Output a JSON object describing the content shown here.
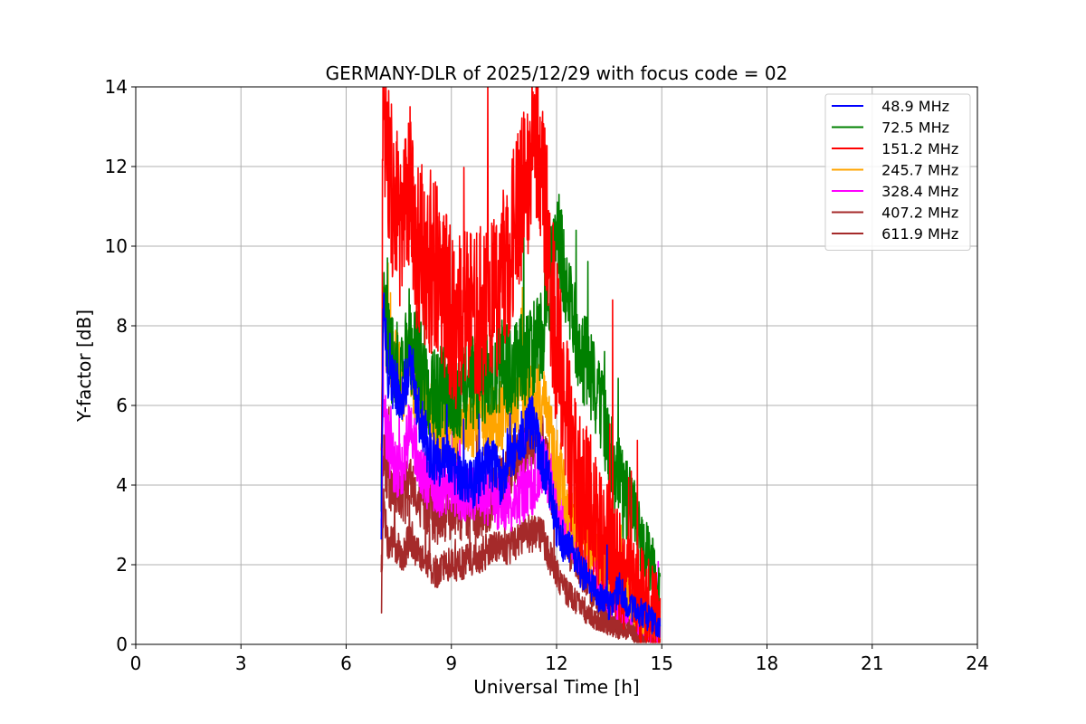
{
  "chart_data": {
    "type": "line",
    "title": "GERMANY-DLR of 2025/12/29 with focus code = 02",
    "xlabel": "Universal Time [h]",
    "ylabel": "Y-factor [dB]",
    "xlim": [
      0,
      24
    ],
    "ylim": [
      0,
      14
    ],
    "xticks": [
      "0",
      "3",
      "6",
      "9",
      "12",
      "15",
      "18",
      "21",
      "24"
    ],
    "yticks": [
      "0",
      "2",
      "4",
      "6",
      "8",
      "10",
      "12",
      "14"
    ],
    "grid": true,
    "legend_position": "top-right",
    "series": [
      {
        "name": " 48.9 MHz",
        "color": "#0000ff",
        "noise": 0.7,
        "x": [
          7.0,
          7.05,
          7.2,
          7.4,
          7.6,
          7.8,
          8.0,
          8.3,
          8.6,
          8.9,
          9.2,
          9.5,
          9.8,
          10.1,
          10.4,
          10.7,
          11.0,
          11.3,
          11.6,
          11.8,
          12.0,
          12.3,
          12.6,
          12.9,
          13.2,
          13.5,
          13.8,
          14.1,
          14.4,
          14.7,
          14.95
        ],
        "y": [
          2.5,
          8.5,
          6.8,
          6.5,
          6.2,
          7.0,
          6.0,
          5.0,
          4.5,
          4.6,
          4.3,
          4.0,
          4.2,
          4.6,
          4.2,
          4.8,
          5.2,
          5.6,
          4.5,
          4.1,
          3.0,
          2.4,
          2.0,
          1.6,
          1.2,
          1.0,
          1.4,
          0.9,
          0.8,
          0.6,
          0.5
        ]
      },
      {
        "name": " 72.5 MHz",
        "color": "#008000",
        "noise": 1.2,
        "x": [
          7.0,
          7.05,
          7.2,
          7.4,
          7.6,
          7.8,
          8.0,
          8.3,
          8.6,
          8.9,
          9.2,
          9.5,
          9.8,
          10.1,
          10.4,
          10.7,
          11.0,
          11.3,
          11.6,
          11.8,
          12.0,
          12.3,
          12.6,
          12.9,
          13.2,
          13.5,
          13.8,
          14.1,
          14.4,
          14.7,
          14.95
        ],
        "y": [
          3.0,
          8.5,
          7.5,
          7.0,
          6.8,
          7.5,
          7.2,
          6.5,
          6.2,
          6.5,
          6.3,
          6.5,
          6.6,
          6.8,
          7.0,
          6.9,
          7.1,
          7.4,
          7.8,
          9.0,
          10.5,
          9.0,
          7.5,
          7.0,
          6.0,
          5.0,
          4.0,
          3.4,
          2.6,
          2.0,
          1.2
        ]
      },
      {
        "name": " 151.2 MHz",
        "color": "#ff0000",
        "noise": 2.2,
        "x": [
          7.0,
          7.05,
          7.2,
          7.4,
          7.6,
          7.8,
          8.0,
          8.3,
          8.6,
          8.9,
          9.2,
          9.5,
          9.8,
          10.1,
          10.4,
          10.7,
          11.0,
          11.3,
          11.6,
          11.8,
          12.0,
          12.3,
          12.6,
          12.9,
          13.2,
          13.5,
          13.8,
          14.1,
          14.4,
          14.7,
          14.95
        ],
        "y": [
          4.0,
          13.0,
          12.0,
          11.0,
          10.0,
          11.5,
          10.0,
          9.5,
          9.5,
          8.5,
          8.0,
          8.5,
          8.3,
          8.5,
          9.0,
          10.0,
          11.0,
          12.5,
          12.0,
          9.5,
          7.5,
          5.5,
          4.0,
          3.5,
          3.0,
          2.5,
          2.0,
          1.5,
          1.2,
          0.9,
          0.6
        ]
      },
      {
        "name": " 245.7 MHz",
        "color": "#ffa500",
        "noise": 1.0,
        "x": [
          7.0,
          7.05,
          7.2,
          7.4,
          7.6,
          7.8,
          8.0,
          8.3,
          8.6,
          8.9,
          9.2,
          9.5,
          9.8,
          10.1,
          10.4,
          10.7,
          11.0,
          11.3,
          11.6,
          11.8,
          12.0,
          12.3,
          12.6,
          12.9,
          13.2,
          13.5,
          13.8,
          14.1,
          14.4,
          14.7,
          14.95
        ],
        "y": [
          3.5,
          8.5,
          7.5,
          7.0,
          6.5,
          7.2,
          6.5,
          5.8,
          5.5,
          5.6,
          5.5,
          5.6,
          5.7,
          5.6,
          5.8,
          6.0,
          6.2,
          6.3,
          6.0,
          5.2,
          4.5,
          3.6,
          3.0,
          2.6,
          2.2,
          1.8,
          1.5,
          1.2,
          0.8,
          0.6,
          0.5
        ]
      },
      {
        "name": " 328.4 MHz",
        "color": "#ff00ff",
        "noise": 0.8,
        "x": [
          7.0,
          7.05,
          7.2,
          7.4,
          7.6,
          7.8,
          8.0,
          8.3,
          8.6,
          8.9,
          9.2,
          9.5,
          9.8,
          10.1,
          10.4,
          10.7,
          11.0,
          11.3,
          11.6,
          11.8,
          12.0,
          12.3,
          12.6,
          12.9,
          13.2,
          13.5,
          13.8,
          14.1,
          14.4,
          14.7,
          14.95
        ],
        "y": [
          2.8,
          6.0,
          5.0,
          4.5,
          4.3,
          5.5,
          4.8,
          4.2,
          4.0,
          4.0,
          3.9,
          3.8,
          3.8,
          3.7,
          3.6,
          3.5,
          3.8,
          4.0,
          4.5,
          4.2,
          3.8,
          3.0,
          2.5,
          2.0,
          1.6,
          1.2,
          1.0,
          0.8,
          0.6,
          0.4,
          0.3
        ]
      },
      {
        "name": " 407.2 MHz",
        "color": "#a52a2a",
        "noise": 0.8,
        "x": [
          7.0,
          7.05,
          7.2,
          7.4,
          7.6,
          7.8,
          8.0,
          8.3,
          8.6,
          8.9,
          9.2,
          9.5,
          9.8,
          10.1,
          10.4,
          10.7,
          11.0,
          11.3,
          11.6,
          11.8,
          12.0,
          12.3,
          12.6,
          12.9,
          13.2,
          13.5,
          13.8,
          14.1,
          14.4,
          14.7,
          14.95
        ],
        "y": [
          1.5,
          5.0,
          4.0,
          3.8,
          3.6,
          4.0,
          3.8,
          3.5,
          3.2,
          3.3,
          3.3,
          3.4,
          3.4,
          3.6,
          4.0,
          4.5,
          4.7,
          5.2,
          5.0,
          4.2,
          3.5,
          2.6,
          2.1,
          1.6,
          1.2,
          0.8,
          0.6,
          0.5,
          0.4,
          0.3,
          0.2
        ]
      },
      {
        "name": " 611.9 MHz",
        "color": "#a52a2a",
        "noise": 0.6,
        "x": [
          7.0,
          7.05,
          7.2,
          7.4,
          7.6,
          7.8,
          8.0,
          8.3,
          8.6,
          8.9,
          9.2,
          9.5,
          9.8,
          10.1,
          10.4,
          10.7,
          11.0,
          11.3,
          11.6,
          11.8,
          12.0,
          12.3,
          12.6,
          12.9,
          13.2,
          13.5,
          13.8,
          14.1,
          14.4,
          14.7,
          14.95
        ],
        "y": [
          0.6,
          3.5,
          2.5,
          2.5,
          2.2,
          2.6,
          2.3,
          2.0,
          1.8,
          2.0,
          2.0,
          2.1,
          2.2,
          2.4,
          2.4,
          2.5,
          2.7,
          2.8,
          2.7,
          2.2,
          1.8,
          1.3,
          1.0,
          0.8,
          0.6,
          0.5,
          0.4,
          0.3,
          0.2,
          0.15,
          0.1
        ]
      }
    ]
  }
}
